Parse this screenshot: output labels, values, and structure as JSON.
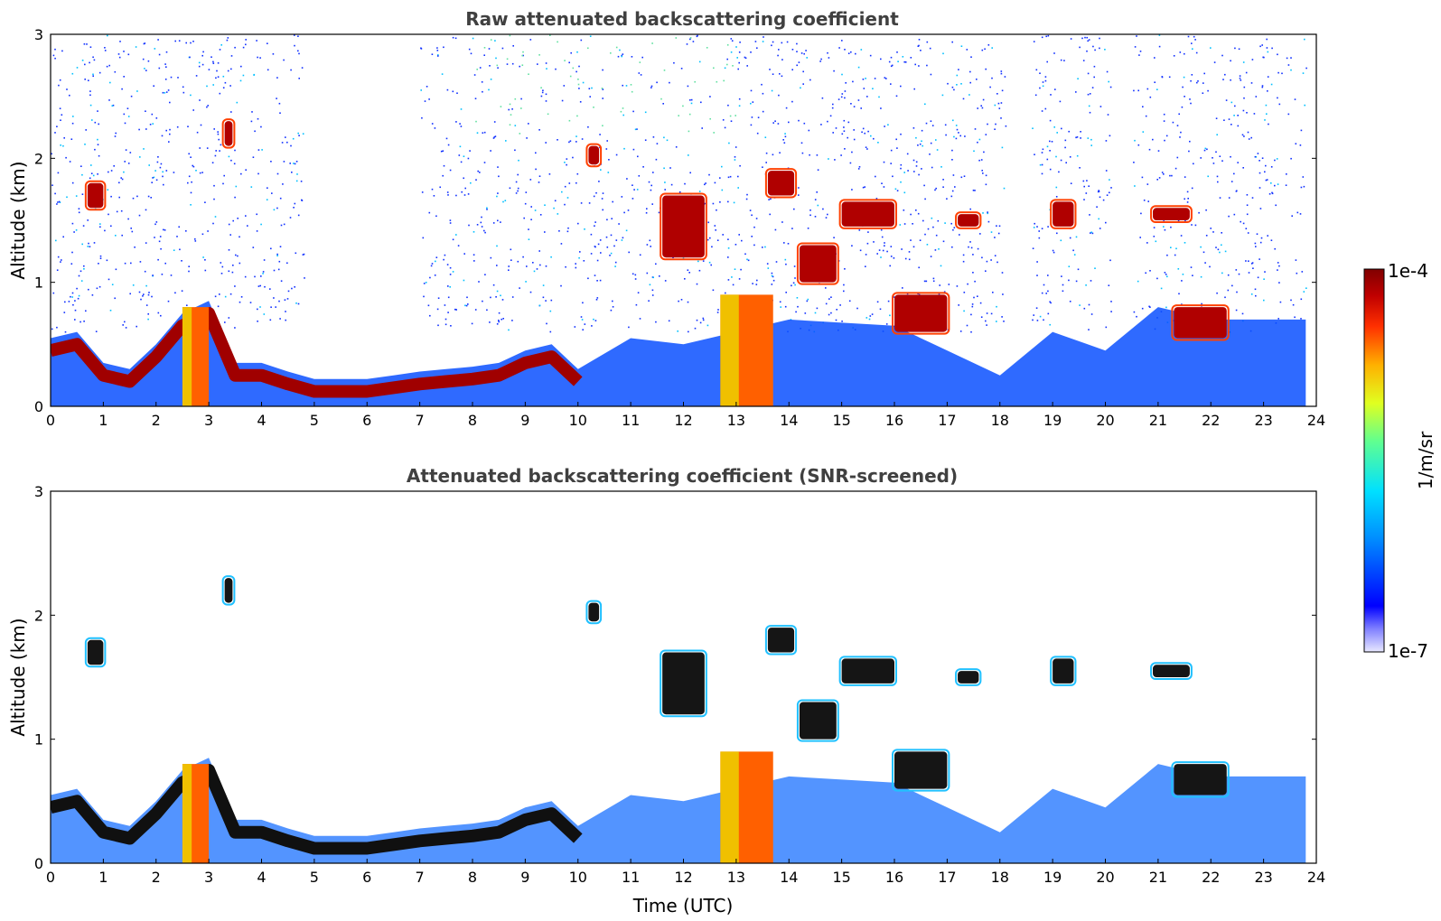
{
  "chart_data": [
    {
      "type": "heatmap",
      "title": "Raw attenuated backscattering coefficient",
      "xlabel": "",
      "ylabel": "Altitude (km)",
      "xlim": [
        0,
        24
      ],
      "ylim": [
        0,
        3
      ],
      "x_ticks": [
        "0",
        "1",
        "2",
        "3",
        "4",
        "5",
        "6",
        "7",
        "8",
        "9",
        "10",
        "11",
        "12",
        "13",
        "14",
        "15",
        "16",
        "17",
        "18",
        "19",
        "20",
        "21",
        "22",
        "23",
        "24"
      ],
      "y_ticks": [
        "0",
        "1",
        "2",
        "3"
      ],
      "boundary_layer_top_km": [
        [
          0,
          0.55
        ],
        [
          0.5,
          0.6
        ],
        [
          1,
          0.35
        ],
        [
          1.5,
          0.3
        ],
        [
          2,
          0.5
        ],
        [
          2.5,
          0.75
        ],
        [
          3,
          0.85
        ],
        [
          3.5,
          0.35
        ],
        [
          4,
          0.35
        ],
        [
          4.5,
          0.28
        ],
        [
          5,
          0.22
        ],
        [
          5.5,
          0.22
        ],
        [
          6,
          0.22
        ],
        [
          6.5,
          0.25
        ],
        [
          7,
          0.28
        ],
        [
          7.5,
          0.3
        ],
        [
          8,
          0.32
        ],
        [
          8.5,
          0.35
        ],
        [
          9,
          0.45
        ],
        [
          9.5,
          0.5
        ],
        [
          10,
          0.3
        ]
      ],
      "cloud_layers": [
        {
          "x": [
            0.7,
            1.0
          ],
          "alt_km": [
            1.6,
            1.8
          ]
        },
        {
          "x": [
            3.3,
            3.45
          ],
          "alt_km": [
            2.1,
            2.3
          ]
        },
        {
          "x": [
            10.2,
            10.4
          ],
          "alt_km": [
            1.95,
            2.1
          ]
        },
        {
          "x": [
            11.6,
            12.4
          ],
          "alt_km": [
            1.2,
            1.7
          ]
        },
        {
          "x": [
            13.6,
            14.1
          ],
          "alt_km": [
            1.7,
            1.9
          ]
        },
        {
          "x": [
            14.2,
            14.9
          ],
          "alt_km": [
            1.0,
            1.3
          ]
        },
        {
          "x": [
            15.0,
            16.0
          ],
          "alt_km": [
            1.45,
            1.65
          ]
        },
        {
          "x": [
            16.0,
            17.0
          ],
          "alt_km": [
            0.6,
            0.9
          ]
        },
        {
          "x": [
            17.2,
            17.6
          ],
          "alt_km": [
            1.45,
            1.55
          ]
        },
        {
          "x": [
            19.0,
            19.4
          ],
          "alt_km": [
            1.45,
            1.65
          ]
        },
        {
          "x": [
            20.9,
            21.6
          ],
          "alt_km": [
            1.5,
            1.6
          ]
        },
        {
          "x": [
            21.3,
            22.3
          ],
          "alt_km": [
            0.55,
            0.8
          ]
        }
      ],
      "vertical_plumes": [
        {
          "x": [
            2.5,
            3.0
          ],
          "alt_km": [
            0,
            0.8
          ]
        },
        {
          "x": [
            12.7,
            13.7
          ],
          "alt_km": [
            0,
            0.9
          ]
        }
      ],
      "no_signal_gaps": [
        {
          "x": [
            4.8,
            7.0
          ],
          "alt_km": [
            0.55,
            3
          ]
        },
        {
          "x": [
            18.1,
            18.6
          ],
          "alt_km": [
            0.2,
            3
          ]
        },
        {
          "x": [
            20.1,
            20.5
          ],
          "alt_km": [
            0.4,
            3
          ]
        }
      ]
    },
    {
      "type": "heatmap",
      "title": "Attenuated backscattering coefficient (SNR-screened)",
      "xlabel": "Time (UTC)",
      "ylabel": "Altitude (km)",
      "xlim": [
        0,
        24
      ],
      "ylim": [
        0,
        3
      ],
      "x_ticks": [
        "0",
        "1",
        "2",
        "3",
        "4",
        "5",
        "6",
        "7",
        "8",
        "9",
        "10",
        "11",
        "12",
        "13",
        "14",
        "15",
        "16",
        "17",
        "18",
        "19",
        "20",
        "21",
        "22",
        "23",
        "24"
      ],
      "y_ticks": [
        "0",
        "1",
        "2",
        "3"
      ]
    }
  ],
  "colorbar": {
    "label": "1/m/sr",
    "max_label": "1e-4",
    "min_label": "1e-7",
    "scale": "log",
    "colors": [
      "#e8e8ff",
      "#0000ff",
      "#0090ff",
      "#00e0ff",
      "#60ff90",
      "#e0ff20",
      "#ffb000",
      "#ff3000",
      "#c00000",
      "#800000"
    ]
  }
}
